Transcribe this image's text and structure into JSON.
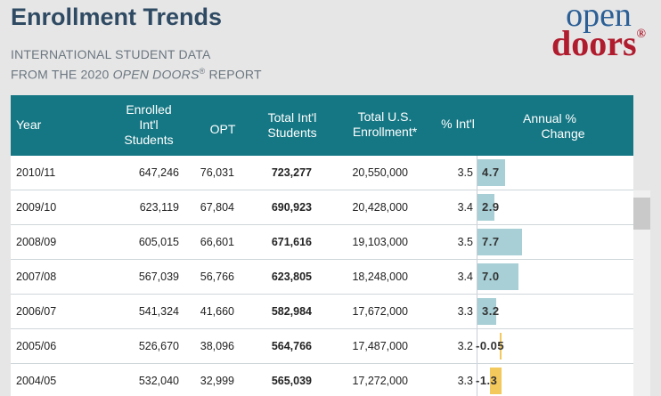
{
  "header": {
    "title": "Enrollment Trends",
    "subtitle_line1": "INTERNATIONAL STUDENT DATA",
    "subtitle_line2_prefix": "FROM THE 2020",
    "subtitle_line2_italic": "OPEN DOORS",
    "subtitle_line2_reg": "®",
    "subtitle_line2_suffix": "REPORT"
  },
  "logo": {
    "top": "open",
    "bottom": "doors",
    "reg": "®"
  },
  "table": {
    "headers": {
      "year": "Year",
      "enrolled": [
        "Enrolled",
        "Int'l",
        "Students"
      ],
      "opt": "OPT",
      "total_intl": [
        "Total Int'l",
        "Students"
      ],
      "total_us": [
        "Total U.S.",
        "Enrollment*"
      ],
      "pct_intl": "% Int'l",
      "annual": [
        "Annual %",
        "Change"
      ]
    },
    "rows": [
      {
        "year": "2010/11",
        "enrolled": "647,246",
        "opt": "76,031",
        "total_intl": "723,277",
        "total_us": "20,550,000",
        "pct_intl": "3.5",
        "change": "4.7",
        "change_value": 4.7
      },
      {
        "year": "2009/10",
        "enrolled": "623,119",
        "opt": "67,804",
        "total_intl": "690,923",
        "total_us": "20,428,000",
        "pct_intl": "3.4",
        "change": "2.9",
        "change_value": 2.9
      },
      {
        "year": "2008/09",
        "enrolled": "605,015",
        "opt": "66,601",
        "total_intl": "671,616",
        "total_us": "19,103,000",
        "pct_intl": "3.5",
        "change": "7.7",
        "change_value": 7.7
      },
      {
        "year": "2007/08",
        "enrolled": "567,039",
        "opt": "56,766",
        "total_intl": "623,805",
        "total_us": "18,248,000",
        "pct_intl": "3.4",
        "change": "7.0",
        "change_value": 7.0
      },
      {
        "year": "2006/07",
        "enrolled": "541,324",
        "opt": "41,660",
        "total_intl": "582,984",
        "total_us": "17,672,000",
        "pct_intl": "3.3",
        "change": "3.2",
        "change_value": 3.2
      },
      {
        "year": "2005/06",
        "enrolled": "526,670",
        "opt": "38,096",
        "total_intl": "564,766",
        "total_us": "17,487,000",
        "pct_intl": "3.2",
        "change": "-0.05",
        "change_value": -0.05
      },
      {
        "year": "2004/05",
        "enrolled": "532,040",
        "opt": "32,999",
        "total_intl": "565,039",
        "total_us": "17,272,000",
        "pct_intl": "3.3",
        "change": "-1.3",
        "change_value": -1.3
      }
    ]
  },
  "colors": {
    "header_bg": "#157784",
    "title": "#2f4a63",
    "bar_positive": "#a7cfd5",
    "bar_negative": "#f3c85c",
    "logo_open": "#2b5f96",
    "logo_doors": "#b01c2e"
  }
}
